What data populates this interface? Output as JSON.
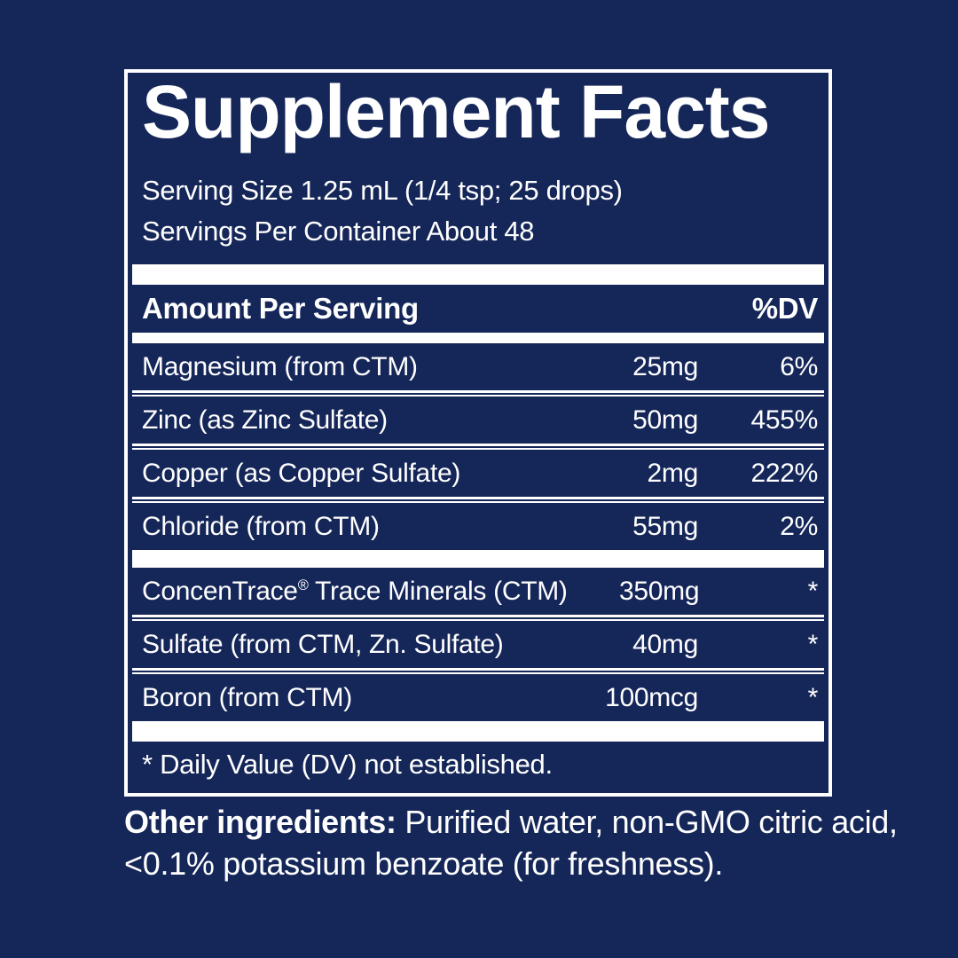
{
  "colors": {
    "background": "#152659",
    "foreground": "#ffffff"
  },
  "label": {
    "title": "Supplement Facts",
    "serving_size": "Serving Size 1.25 mL (1/4 tsp; 25 drops)",
    "servings_per_container": "Servings Per Container About 48",
    "header": {
      "amount_per_serving": "Amount Per Serving",
      "dv": "%DV"
    },
    "groups": [
      {
        "rows": [
          {
            "name": "Magnesium (from CTM)",
            "amount": "25mg",
            "dv": "6%"
          },
          {
            "name": "Zinc (as Zinc Sulfate)",
            "amount": "50mg",
            "dv": "455%"
          },
          {
            "name": "Copper (as Copper Sulfate)",
            "amount": "2mg",
            "dv": "222%"
          },
          {
            "name": "Chloride (from CTM)",
            "amount": "55mg",
            "dv": "2%"
          }
        ]
      },
      {
        "rows": [
          {
            "name": "ConcenTrace® Trace Minerals (CTM)",
            "amount": "350mg",
            "dv": "*"
          },
          {
            "name": "Sulfate (from CTM, Zn. Sulfate)",
            "amount": "40mg",
            "dv": "*"
          },
          {
            "name": "Boron (from CTM)",
            "amount": "100mcg",
            "dv": "*"
          }
        ]
      }
    ],
    "footnote": "* Daily Value (DV) not established."
  },
  "other_ingredients": {
    "label": "Other ingredients:",
    "line1_rest": " Purified water, non-GMO citric acid,",
    "line2": "<0.1% potassium benzoate (for freshness)."
  }
}
